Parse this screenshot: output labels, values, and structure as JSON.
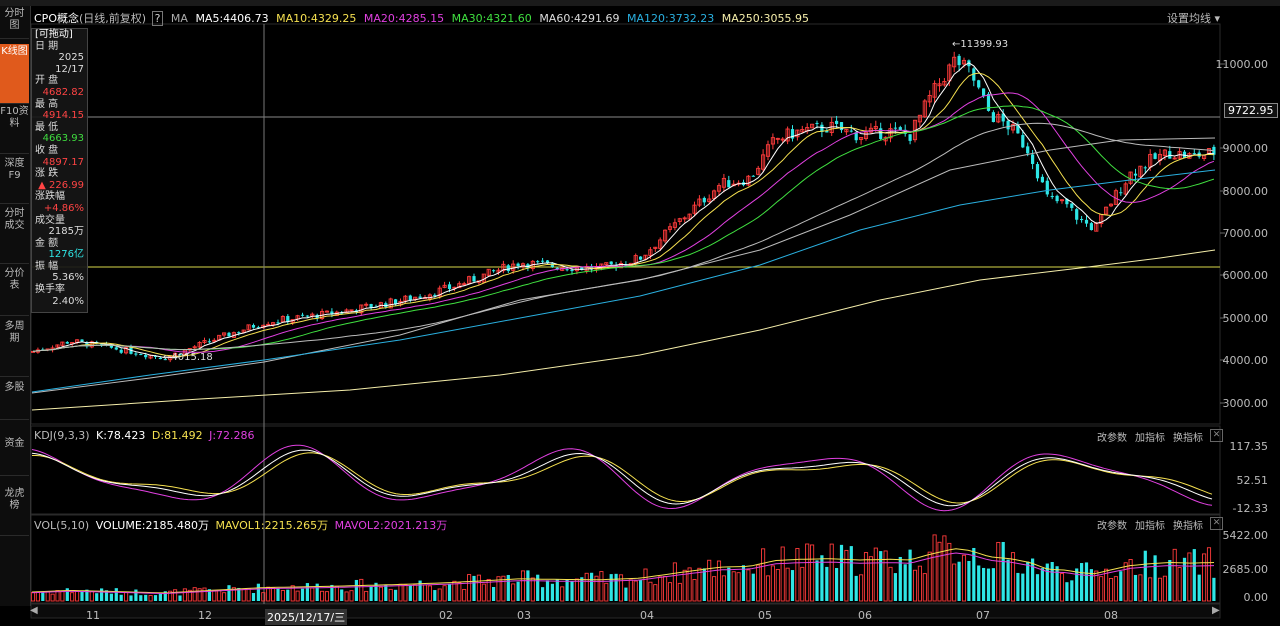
{
  "sidebar": {
    "items": [
      {
        "label": "分时图",
        "active": false
      },
      {
        "label": "K线图",
        "active": true
      },
      {
        "label": "F10资料",
        "active": false
      },
      {
        "label": "深度F9",
        "active": false
      },
      {
        "label": "分时成交",
        "active": false
      },
      {
        "label": "分价表",
        "active": false
      },
      {
        "label": "多周期",
        "active": false
      },
      {
        "label": "多股",
        "active": false
      },
      {
        "label": "资金",
        "active": false
      },
      {
        "label": "龙虎榜",
        "active": false
      }
    ]
  },
  "header": {
    "name": "CPO概念",
    "mode": "(日线,前复权)",
    "help": "?",
    "ma_label": "MA",
    "ma5": "MA5:4406.73",
    "ma10": "MA10:4329.25",
    "ma20": "MA20:4285.15",
    "ma30": "MA30:4321.60",
    "ma60": "MA60:4291.69",
    "ma120": "MA120:3732.23",
    "ma250": "MA250:3055.95",
    "settings": "设置均线"
  },
  "info": {
    "title": "[可拖动]",
    "date_label": "日 期",
    "year": "2025",
    "date": "12/17",
    "open_label": "开 盘",
    "open": "4682.82",
    "high_label": "最 高",
    "high": "4914.15",
    "low_label": "最 低",
    "low": "4663.93",
    "close_label": "收 盘",
    "close": "4897.17",
    "change_label": "涨 跌",
    "change": "▲ 226.99",
    "pct_label": "涨跌幅",
    "pct": "+4.86%",
    "vol_label": "成交量",
    "vol": "2185万",
    "amount_label": "金 额",
    "amount": "1276亿",
    "amp_label": "振 幅",
    "amp": "5.36%",
    "turnover_label": "换手率",
    "turnover": "2.40%"
  },
  "main_chart": {
    "high_annotation": "11399.93",
    "low_annotation": "4015.18",
    "current_price": "9722.95",
    "yticks": [
      "11000.00",
      "9000.00",
      "8000.00",
      "7000.00",
      "6000.00",
      "5000.00",
      "4000.00",
      "3000.00"
    ]
  },
  "kdj": {
    "label": "KDJ(9,3,3)",
    "k": "K:78.423",
    "d": "D:81.492",
    "j": "J:72.286",
    "yticks": [
      "117.35",
      "52.51",
      "-12.33"
    ]
  },
  "vol": {
    "label": "VOL(5,10)",
    "volume": "VOLUME:2185.480万",
    "mavol1": "MAVOL1:2215.265万",
    "mavol2": "MAVOL2:2021.213万",
    "yticks": [
      "5422.00",
      "2685.00",
      "0.00"
    ]
  },
  "panel_buttons": {
    "params": "改参数",
    "add": "加指标",
    "switch": "换指标",
    "close": "✕"
  },
  "xaxis": {
    "labels": [
      "11",
      "12",
      "2025/12/17/三",
      "02",
      "03",
      "04",
      "05",
      "06",
      "07",
      "08"
    ],
    "cursor_date": "2025/12/17/三"
  },
  "colors": {
    "up": "#ff3b3b",
    "down": "#2ee6e6",
    "ma5": "#ffffff",
    "ma10": "#f5e050",
    "ma20": "#e040e0",
    "ma30": "#40e040",
    "ma60": "#bbbbbb",
    "ma120": "#2ab0e0",
    "ma250": "#f5eeaa"
  }
}
